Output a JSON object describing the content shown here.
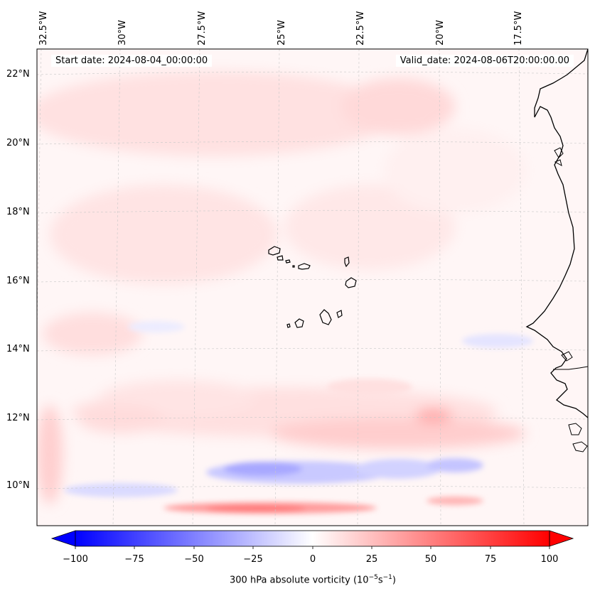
{
  "map": {
    "start_date": "Start date: 2024-08-04_00:00:00",
    "valid_date": "Valid_date: 2024-08-06T20:00:00.00",
    "lon_labels": [
      "32.5°W",
      "30°W",
      "27.5°W",
      "25°W",
      "22.5°W",
      "20°W",
      "17.5°W"
    ],
    "lat_labels": [
      "22°N",
      "20°N",
      "18°N",
      "16°N",
      "14°N",
      "12°N",
      "10°N"
    ],
    "field": "300 hPa absolute vorticity",
    "islands": "Cape Verde"
  },
  "colorbar": {
    "ticks": [
      "−100",
      "−75",
      "−50",
      "−25",
      "0",
      "25",
      "50",
      "75",
      "100"
    ],
    "label_text": "300 hPa absolute vorticity (10",
    "label_exp1": "−5",
    "label_mid": "s",
    "label_exp2": "−1",
    "label_end": ")",
    "min": -100,
    "max": 100,
    "colors": {
      "negative": "#0000ff",
      "zero": "#ffffff",
      "positive": "#ff0000"
    }
  }
}
